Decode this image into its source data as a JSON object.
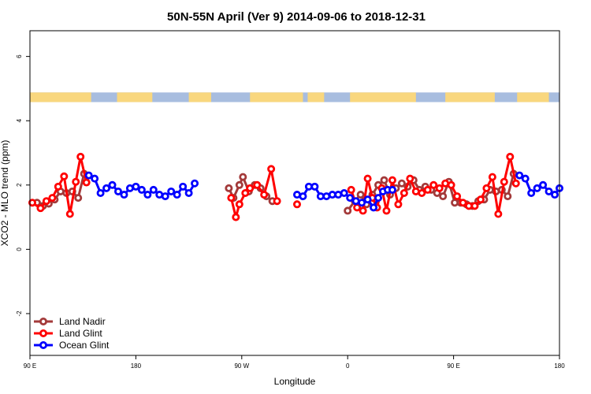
{
  "chart_data": {
    "type": "line",
    "title": "50N-55N April (Ver 9)   2014-09-06 to 2018-12-31",
    "xlabel": "Longitude",
    "ylabel": "XCO2 - MLO trend (ppm)",
    "xlim": [
      90,
      540
    ],
    "ylim": [
      -3.3,
      6.8
    ],
    "x_ticks": [
      {
        "value": 90,
        "label": "90 E"
      },
      {
        "value": 180,
        "label": "180"
      },
      {
        "value": 270,
        "label": "90 W"
      },
      {
        "value": 360,
        "label": "0"
      },
      {
        "value": 450,
        "label": "90 E"
      },
      {
        "value": 540,
        "label": "180"
      }
    ],
    "y_ticks": [
      {
        "value": -2,
        "label": "-2"
      },
      {
        "value": 0,
        "label": "0"
      },
      {
        "value": 2,
        "label": "2"
      },
      {
        "value": 4,
        "label": "4"
      },
      {
        "value": 6,
        "label": "6"
      }
    ],
    "land_sea_bar": {
      "y_range": [
        4.58,
        4.88
      ],
      "land_color": "#f9d77e",
      "ocean_color": "#a8bddf",
      "land_segments": [
        [
          90,
          142
        ],
        [
          164,
          194
        ],
        [
          225,
          244
        ],
        [
          277,
          322
        ],
        [
          326,
          340
        ],
        [
          362,
          418
        ],
        [
          443,
          485
        ],
        [
          504,
          531
        ]
      ]
    },
    "legend_position": "bottom-left",
    "series": [
      {
        "name": "Land Nadir",
        "color": "#a33a3a",
        "segments": [
          [
            [
              96,
              1.45
            ],
            [
              101,
              1.35
            ],
            [
              106,
              1.42
            ],
            [
              111,
              1.55
            ],
            [
              116,
              1.8
            ],
            [
              121,
              1.75
            ],
            [
              126,
              1.8
            ],
            [
              131,
              1.6
            ],
            [
              136,
              2.35
            ]
          ],
          [
            [
              259,
              1.9
            ],
            [
              263,
              1.6
            ],
            [
              268,
              2.0
            ],
            [
              271,
              2.25
            ],
            [
              276,
              1.8
            ],
            [
              281,
              2.0
            ],
            [
              286,
              1.9
            ],
            [
              291,
              1.65
            ],
            [
              296,
              1.5
            ]
          ],
          [
            [
              360,
              1.2
            ],
            [
              366,
              1.5
            ],
            [
              371,
              1.7
            ],
            [
              376,
              1.4
            ],
            [
              381,
              1.7
            ],
            [
              386,
              2.0
            ],
            [
              391,
              2.15
            ],
            [
              396,
              1.7
            ],
            [
              401,
              1.9
            ],
            [
              406,
              2.05
            ],
            [
              411,
              1.95
            ],
            [
              416,
              2.15
            ],
            [
              421,
              1.85
            ],
            [
              426,
              1.95
            ],
            [
              431,
              1.85
            ],
            [
              436,
              1.75
            ],
            [
              441,
              1.65
            ],
            [
              446,
              2.1
            ],
            [
              451,
              1.45
            ],
            [
              456,
              1.45
            ],
            [
              461,
              1.4
            ],
            [
              466,
              1.35
            ],
            [
              471,
              1.5
            ],
            [
              476,
              1.55
            ],
            [
              481,
              1.85
            ],
            [
              486,
              1.8
            ],
            [
              491,
              1.85
            ],
            [
              496,
              1.65
            ],
            [
              501,
              2.35
            ]
          ]
        ]
      },
      {
        "name": "Land Glint",
        "color": "#ff0000",
        "segments": [
          [
            [
              92,
              1.45
            ],
            [
              99,
              1.28
            ],
            [
              104,
              1.5
            ],
            [
              109,
              1.6
            ],
            [
              114,
              1.95
            ],
            [
              119,
              2.27
            ],
            [
              124,
              1.1
            ],
            [
              129,
              2.1
            ],
            [
              133,
              2.88
            ],
            [
              138,
              2.08
            ]
          ],
          [
            [
              261,
              1.6
            ],
            [
              265,
              1.0
            ],
            [
              268,
              1.4
            ],
            [
              273,
              1.75
            ],
            [
              277,
              1.9
            ],
            [
              283,
              2.0
            ],
            [
              289,
              1.7
            ],
            [
              295,
              2.5
            ],
            [
              300,
              1.5
            ]
          ],
          [
            [
              317,
              1.4
            ]
          ],
          [
            [
              363,
              1.85
            ],
            [
              368,
              1.3
            ],
            [
              373,
              1.2
            ],
            [
              377,
              2.2
            ],
            [
              381,
              1.6
            ],
            [
              385,
              1.3
            ],
            [
              389,
              1.9
            ],
            [
              393,
              1.2
            ],
            [
              398,
              2.15
            ],
            [
              403,
              1.4
            ],
            [
              408,
              1.75
            ],
            [
              413,
              2.2
            ],
            [
              418,
              1.8
            ],
            [
              423,
              1.75
            ],
            [
              428,
              1.85
            ],
            [
              433,
              2.0
            ],
            [
              438,
              1.9
            ],
            [
              443,
              2.05
            ],
            [
              448,
              2.0
            ],
            [
              453,
              1.65
            ],
            [
              458,
              1.45
            ],
            [
              463,
              1.35
            ],
            [
              468,
              1.35
            ],
            [
              473,
              1.55
            ],
            [
              478,
              1.9
            ],
            [
              483,
              2.25
            ],
            [
              488,
              1.1
            ],
            [
              493,
              2.1
            ],
            [
              498,
              2.88
            ],
            [
              503,
              2.05
            ]
          ]
        ]
      },
      {
        "name": "Ocean Glint",
        "color": "#0000ff",
        "segments": [
          [
            [
              140,
              2.3
            ],
            [
              145,
              2.2
            ],
            [
              150,
              1.75
            ],
            [
              155,
              1.9
            ],
            [
              160,
              2.0
            ],
            [
              165,
              1.8
            ],
            [
              170,
              1.7
            ],
            [
              175,
              1.9
            ],
            [
              180,
              1.95
            ],
            [
              185,
              1.85
            ],
            [
              190,
              1.7
            ],
            [
              195,
              1.85
            ],
            [
              200,
              1.7
            ],
            [
              205,
              1.65
            ],
            [
              210,
              1.8
            ],
            [
              215,
              1.7
            ],
            [
              220,
              1.95
            ],
            [
              225,
              1.75
            ],
            [
              230,
              2.05
            ]
          ],
          [
            [
              317,
              1.7
            ],
            [
              322,
              1.65
            ],
            [
              327,
              1.95
            ],
            [
              332,
              1.95
            ],
            [
              337,
              1.65
            ],
            [
              342,
              1.65
            ],
            [
              347,
              1.7
            ],
            [
              352,
              1.7
            ],
            [
              357,
              1.75
            ],
            [
              362,
              1.6
            ],
            [
              367,
              1.5
            ],
            [
              372,
              1.45
            ],
            [
              377,
              1.55
            ],
            [
              382,
              1.3
            ],
            [
              386,
              1.6
            ],
            [
              390,
              1.8
            ],
            [
              394,
              1.85
            ],
            [
              398,
              1.85
            ]
          ],
          [
            [
              506,
              2.3
            ],
            [
              511,
              2.2
            ],
            [
              516,
              1.75
            ],
            [
              521,
              1.9
            ],
            [
              526,
              2.0
            ],
            [
              531,
              1.8
            ],
            [
              536,
              1.7
            ],
            [
              540,
              1.9
            ]
          ]
        ]
      }
    ]
  }
}
